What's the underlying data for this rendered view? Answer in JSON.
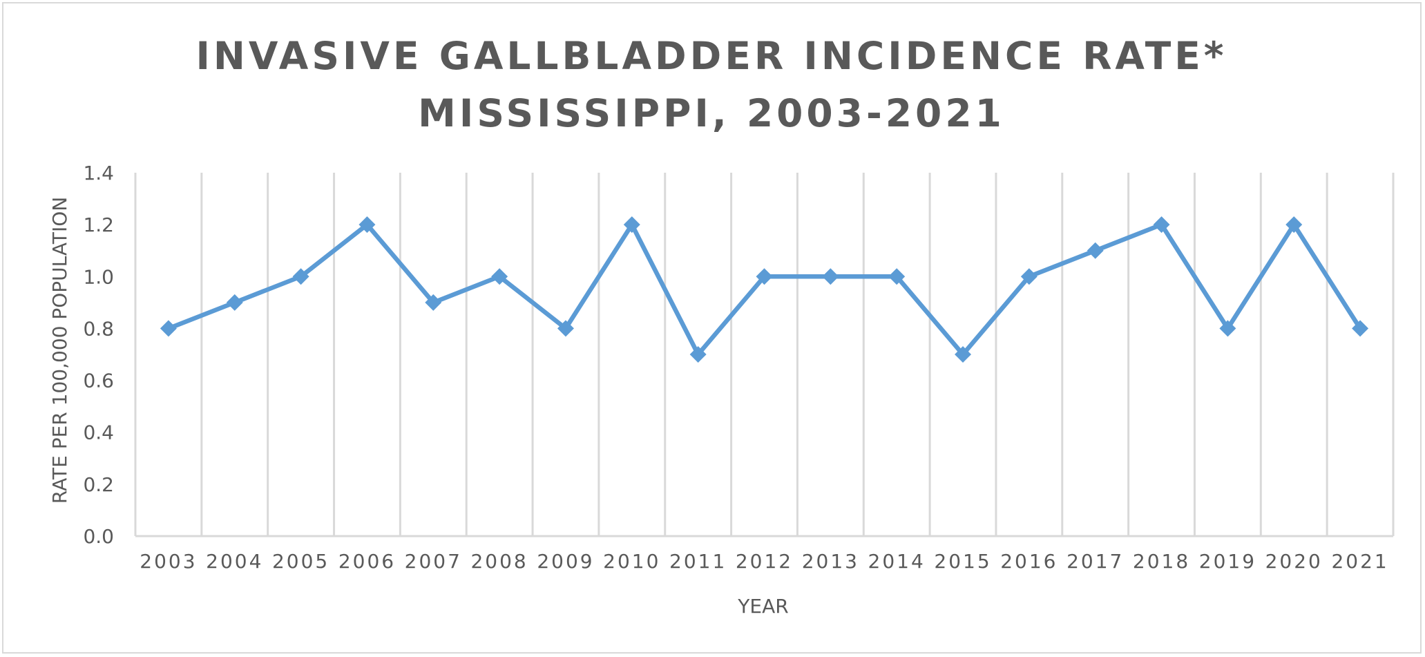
{
  "chart_data": {
    "type": "line",
    "title_lines": [
      "INVASIVE GALLBLADDER INCIDENCE RATE*",
      "MISSISSIPPI, 2003-2021"
    ],
    "xlabel": "YEAR",
    "ylabel": "RATE PER 100,000 POPULATION",
    "categories": [
      "2003",
      "2004",
      "2005",
      "2006",
      "2007",
      "2008",
      "2009",
      "2010",
      "2011",
      "2012",
      "2013",
      "2014",
      "2015",
      "2016",
      "2017",
      "2018",
      "2019",
      "2020",
      "2021"
    ],
    "series": [
      {
        "values": [
          0.8,
          0.9,
          1.0,
          1.2,
          0.9,
          1.0,
          0.8,
          1.2,
          0.7,
          1.0,
          1.0,
          1.0,
          0.7,
          1.0,
          1.1,
          1.2,
          0.8,
          1.2,
          0.8
        ],
        "color": "#5b9bd5",
        "marker": "diamond"
      }
    ],
    "ylim": [
      0,
      1.4
    ],
    "yticks": [
      "0.0",
      "0.2",
      "0.4",
      "0.6",
      "0.8",
      "1.0",
      "1.2",
      "1.4"
    ],
    "grid": "vertical",
    "grid_color": "#d9d9d9",
    "text_color": "#595959",
    "legend": "none"
  }
}
